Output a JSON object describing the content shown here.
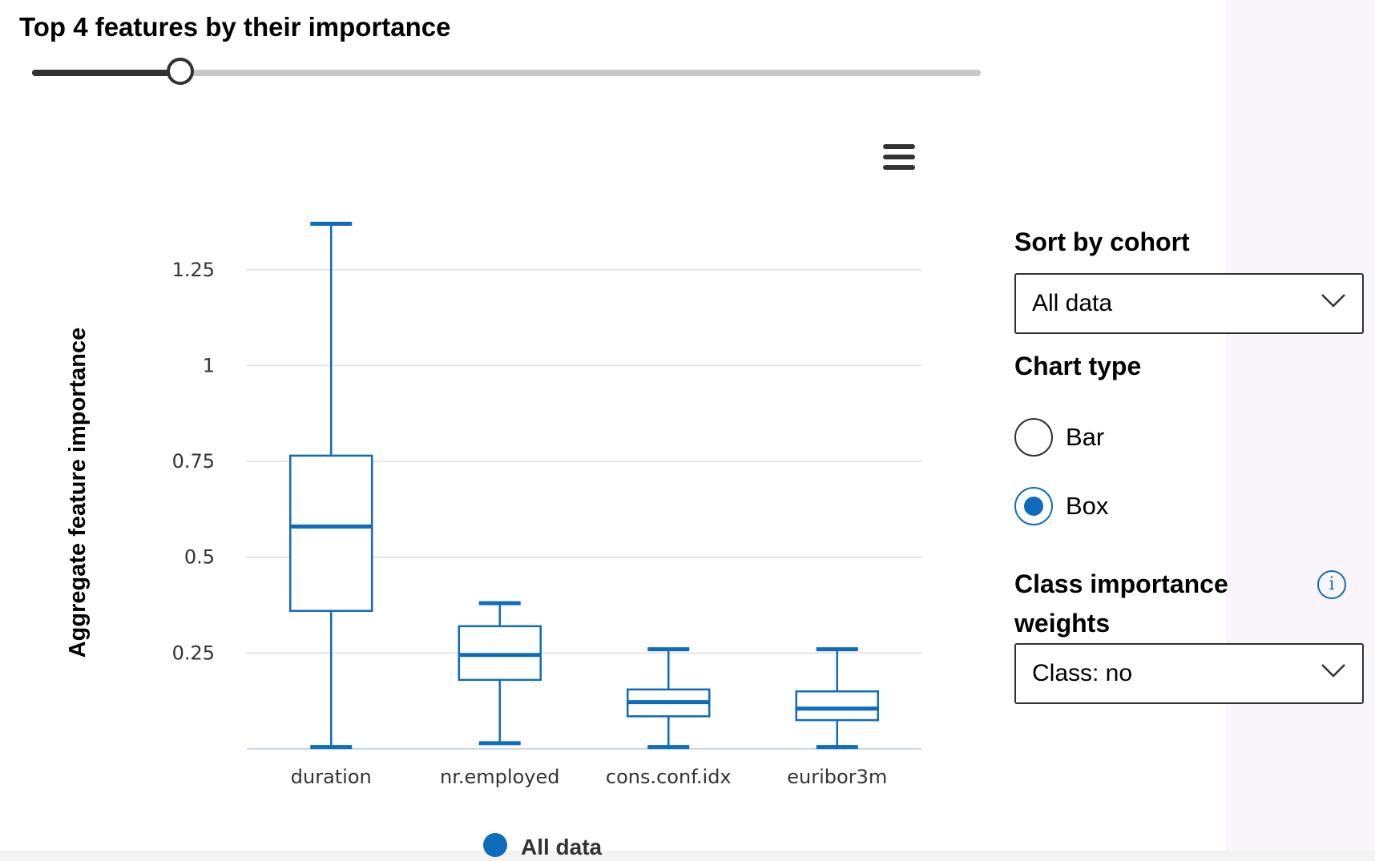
{
  "slider": {
    "title": "Top 4 features by their importance",
    "value": 4,
    "min": 1,
    "max": 20
  },
  "chart_menu": {
    "icon": "hamburger-menu-icon"
  },
  "chart_data": {
    "type": "box",
    "categories": [
      "duration",
      "nr.employed",
      "cons.conf.idx",
      "euribor3m"
    ],
    "series": [
      {
        "name": "All data",
        "color": "#0f6cbd",
        "boxes": [
          {
            "low": 0.005,
            "q1": 0.36,
            "median": 0.58,
            "q3": 0.765,
            "high": 1.37
          },
          {
            "low": 0.015,
            "q1": 0.18,
            "median": 0.245,
            "q3": 0.32,
            "high": 0.38
          },
          {
            "low": 0.005,
            "q1": 0.085,
            "median": 0.122,
            "q3": 0.155,
            "high": 0.26
          },
          {
            "low": 0.005,
            "q1": 0.075,
            "median": 0.105,
            "q3": 0.15,
            "high": 0.26
          }
        ]
      }
    ],
    "y_ticks": [
      {
        "value": 0.25,
        "label": "0.25"
      },
      {
        "value": 0.5,
        "label": "0.5"
      },
      {
        "value": 0.75,
        "label": "0.75"
      },
      {
        "value": 1,
        "label": "1"
      },
      {
        "value": 1.25,
        "label": "1.25"
      }
    ],
    "ylim": [
      0,
      1.4
    ],
    "xlabel": "",
    "ylabel": "Aggregate feature importance",
    "grid": true,
    "legend": {
      "position": "bottom",
      "entries": [
        "All data"
      ]
    }
  },
  "sort_by_cohort": {
    "label": "Sort by cohort",
    "selected": "All data",
    "icon": "chevron-down-icon"
  },
  "chart_type": {
    "label": "Chart type",
    "options": [
      {
        "label": "Bar",
        "checked": false
      },
      {
        "label": "Box",
        "checked": true
      }
    ]
  },
  "class_importance": {
    "label_line1": "Class importance",
    "label_line2": "weights",
    "selected": "Class: no",
    "info_icon": "info-icon",
    "info_glyph": "i"
  }
}
